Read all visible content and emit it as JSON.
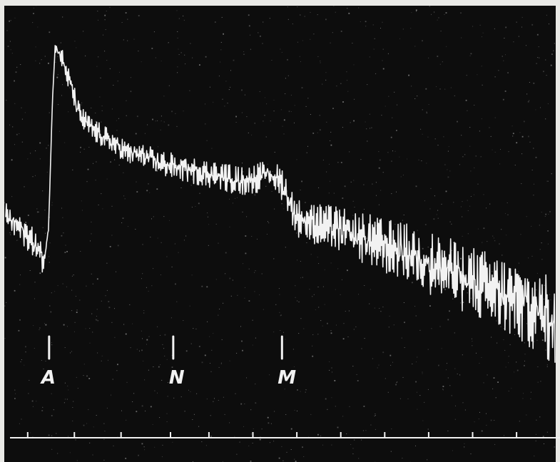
{
  "chart_data": {
    "type": "line",
    "title": "",
    "xlabel": "",
    "ylabel": "",
    "xlim": [
      0,
      100
    ],
    "ylim": [
      0,
      100
    ],
    "grid": false,
    "legend": "none",
    "colors": {
      "background": "#0d0d0d",
      "trace": "#f2f2f2"
    },
    "series": [
      {
        "name": "",
        "x": [
          0,
          2,
          4,
          6,
          7,
          7.8,
          8.5,
          9,
          10,
          11,
          12,
          13,
          14,
          16,
          18,
          20,
          22,
          25,
          28,
          31,
          34,
          37,
          40,
          43,
          46,
          48,
          50,
          51,
          52,
          53,
          55,
          57,
          60,
          63,
          66,
          69,
          72,
          75,
          78,
          81,
          84,
          87,
          90,
          93,
          96,
          98,
          100
        ],
        "y": [
          48,
          46,
          43,
          39,
          36,
          45,
          80,
          95,
          93,
          88,
          84,
          78,
          75,
          72,
          70,
          68,
          66,
          65,
          63,
          62,
          61,
          60,
          59,
          58,
          59,
          60,
          58,
          55,
          51,
          48,
          47,
          46,
          45,
          43,
          42,
          40,
          39,
          37,
          35,
          33,
          31,
          29,
          27,
          25,
          23,
          21,
          19
        ]
      }
    ],
    "markers": [
      {
        "label": "A",
        "x": 7.9
      },
      {
        "label": "N",
        "x": 30.5
      },
      {
        "label": "M",
        "x": 50.3
      }
    ],
    "time_ticks": [
      4,
      12.5,
      21,
      30,
      37,
      45,
      53,
      61,
      69,
      77,
      85,
      93
    ]
  }
}
